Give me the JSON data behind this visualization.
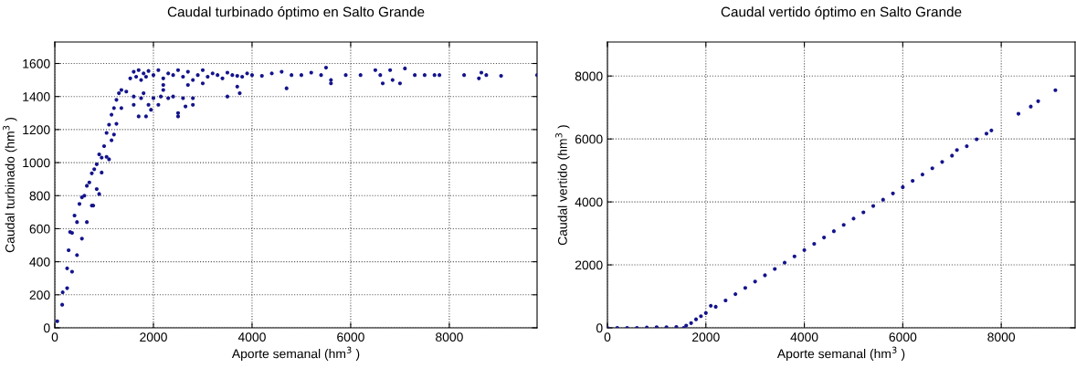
{
  "chart_data": [
    {
      "type": "scatter",
      "title": "Caudal turbinado óptimo en Salto Grande",
      "xlabel": "Aporte semanal (hm$^{3}$ )",
      "ylabel": "Caudal turbinado (hm$^{3}$ )",
      "xlim": [
        0,
        9780
      ],
      "ylim": [
        0,
        1730
      ],
      "xticks": [
        0,
        2000,
        4000,
        6000,
        8000
      ],
      "yticks": [
        0,
        200,
        400,
        600,
        800,
        1000,
        1200,
        1400,
        1600
      ],
      "grid": true,
      "marker": "circle",
      "series": [
        {
          "color": "#14148c",
          "x": [
            50,
            150,
            250,
            350,
            450,
            550,
            650,
            750,
            850,
            950,
            1050,
            1150,
            1250,
            1350,
            1450,
            1530,
            160,
            250,
            280,
            310,
            350,
            400,
            450,
            500,
            550,
            600,
            650,
            700,
            750,
            800,
            850,
            900,
            950,
            1000,
            1050,
            1100,
            1150,
            1200,
            1250,
            1300,
            1350,
            900,
            780,
            1100,
            1200,
            1600,
            1650,
            1700,
            1750,
            1800,
            1850,
            1900,
            2000,
            2100,
            2200,
            2300,
            2400,
            2500,
            2600,
            2700,
            2800,
            2900,
            3000,
            3100,
            3200,
            3300,
            3400,
            3500,
            3600,
            3700,
            3800,
            3900,
            4000,
            4200,
            4400,
            4600,
            4800,
            5000,
            5200,
            5400,
            5500,
            5600,
            5600,
            5900,
            6200,
            6500,
            6600,
            6650,
            6800,
            6850,
            7000,
            7100,
            7300,
            7500,
            7700,
            7800,
            8300,
            8600,
            8650,
            8750,
            9050,
            9780,
            1600,
            1600,
            1700,
            1750,
            1800,
            1850,
            1900,
            1950,
            2000,
            2100,
            2150,
            2200,
            2300,
            2400,
            2500,
            2500,
            2600,
            2650,
            2800,
            2800,
            3500,
            3700,
            3750,
            4700,
            2200,
            2700,
            3000
          ],
          "values": [
            40,
            140,
            240,
            340,
            440,
            540,
            640,
            740,
            840,
            940,
            1035,
            1135,
            1235,
            1330,
            1430,
            1510,
            215,
            360,
            470,
            580,
            575,
            680,
            640,
            750,
            790,
            800,
            860,
            880,
            935,
            960,
            990,
            1050,
            1030,
            1100,
            1180,
            1230,
            1290,
            1330,
            1380,
            1420,
            1440,
            810,
            740,
            1020,
            1170,
            1550,
            1520,
            1560,
            1500,
            1540,
            1520,
            1555,
            1530,
            1560,
            1510,
            1540,
            1530,
            1560,
            1520,
            1550,
            1500,
            1530,
            1560,
            1520,
            1540,
            1530,
            1510,
            1545,
            1530,
            1525,
            1520,
            1540,
            1530,
            1525,
            1540,
            1550,
            1530,
            1530,
            1545,
            1530,
            1575,
            1500,
            1480,
            1530,
            1530,
            1560,
            1530,
            1480,
            1560,
            1500,
            1480,
            1570,
            1530,
            1530,
            1530,
            1530,
            1530,
            1510,
            1545,
            1530,
            1525,
            1530,
            1400,
            1350,
            1280,
            1390,
            1420,
            1280,
            1350,
            1320,
            1390,
            1350,
            1400,
            1440,
            1390,
            1400,
            1300,
            1280,
            1390,
            1340,
            1390,
            1350,
            1400,
            1460,
            1420,
            1450,
            1470,
            1470,
            1480
          ]
        }
      ]
    },
    {
      "type": "scatter",
      "title": "Caudal vertido óptimo en Salto Grande",
      "xlabel": "Aporte semanal (hm$^{3}$ )",
      "ylabel": "Caudal vertido (hm$^{3}$ )",
      "xlim": [
        0,
        9500
      ],
      "ylim": [
        0,
        9080
      ],
      "xticks": [
        0,
        2000,
        4000,
        6000,
        8000
      ],
      "yticks": [
        0,
        2000,
        4000,
        6000,
        8000
      ],
      "grid": true,
      "marker": "circle",
      "series": [
        {
          "color": "#14148c",
          "x": [
            0,
            200,
            400,
            600,
            800,
            1000,
            1200,
            1400,
            1550,
            1600,
            1700,
            1800,
            1900,
            2000,
            2100,
            2200,
            2400,
            2600,
            2800,
            3000,
            3200,
            3400,
            3600,
            3800,
            4000,
            4200,
            4400,
            4600,
            4800,
            5000,
            5200,
            5400,
            5600,
            5800,
            6000,
            6200,
            6400,
            6600,
            6800,
            7000,
            7100,
            7300,
            7500,
            7700,
            7800,
            8350,
            8600,
            8750,
            9100
          ],
          "values": [
            0,
            0,
            0,
            0,
            10,
            20,
            20,
            30,
            0,
            70,
            150,
            270,
            370,
            470,
            700,
            670,
            870,
            1070,
            1270,
            1470,
            1670,
            1870,
            2070,
            2270,
            2470,
            2670,
            2870,
            3070,
            3270,
            3470,
            3670,
            3870,
            4070,
            4270,
            4470,
            4670,
            4870,
            5070,
            5270,
            5470,
            5650,
            5770,
            5990,
            6170,
            6270,
            6800,
            7030,
            7200,
            7550
          ]
        }
      ]
    }
  ]
}
